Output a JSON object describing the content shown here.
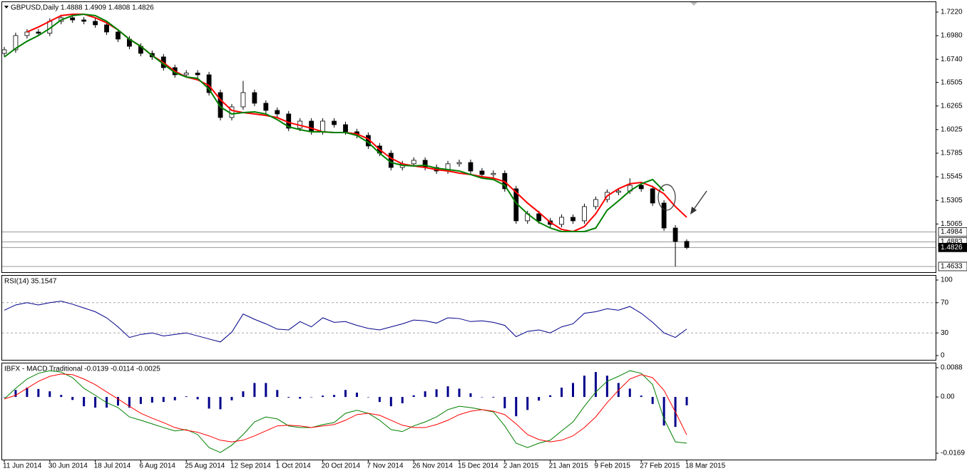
{
  "chart_data": [
    {
      "type": "candlestick",
      "title": "GBPUSD,Daily  1.4888 1.4909 1.4808 1.4826",
      "categories": [
        "11 Jun 2014",
        null,
        null,
        null,
        "30 Jun 2014",
        null,
        null,
        null,
        "18 Jul 2014",
        null,
        null,
        null,
        "6 Aug 2014",
        null,
        null,
        null,
        "25 Aug 2014",
        null,
        null,
        null,
        "12 Sep 2014",
        null,
        null,
        null,
        "1 Oct 2014",
        null,
        null,
        null,
        "20 Oct 2014",
        null,
        null,
        null,
        "7 Nov 2014",
        null,
        null,
        null,
        "26 Nov 2014",
        null,
        null,
        null,
        "15 Dec 2014",
        null,
        null,
        null,
        "2 Jan 2015",
        null,
        null,
        null,
        "21 Jan 2015",
        null,
        null,
        null,
        "9 Feb 2015",
        null,
        null,
        null,
        "27 Feb 2015",
        null,
        null,
        null,
        "18 Mar 2015"
      ],
      "open": [
        1.68,
        1.6836,
        1.6981,
        1.7017,
        1.7005,
        1.7126,
        1.7162,
        1.714,
        1.7126,
        1.709,
        1.7017,
        1.6945,
        1.6872,
        1.68,
        1.6764,
        1.6655,
        1.6582,
        1.66,
        1.6582,
        1.6401,
        1.6148,
        1.6256,
        1.6401,
        1.6293,
        1.622,
        1.6184,
        1.6039,
        1.6111,
        1.6003,
        1.6111,
        1.6075,
        1.6003,
        1.5966,
        1.5858,
        1.5785,
        1.564,
        1.5677,
        1.5713,
        1.564,
        1.5604,
        1.5677,
        1.569,
        1.5604,
        1.5568,
        1.558,
        1.5423,
        1.5097,
        1.5169,
        1.5097,
        1.5061,
        1.5133,
        1.5097,
        1.5242,
        1.5314,
        1.5387,
        1.54,
        1.5459,
        1.5423,
        1.5278,
        1.5024,
        1.4888
      ],
      "high": [
        1.6866,
        1.7011,
        1.7047,
        1.7047,
        1.7156,
        1.7192,
        1.7192,
        1.717,
        1.7156,
        1.712,
        1.7047,
        1.6975,
        1.6902,
        1.683,
        1.6794,
        1.6685,
        1.663,
        1.663,
        1.6612,
        1.6431,
        1.6286,
        1.652,
        1.6431,
        1.6323,
        1.625,
        1.6214,
        1.6141,
        1.6141,
        1.6141,
        1.6141,
        1.6105,
        1.6033,
        1.5996,
        1.5888,
        1.5815,
        1.5707,
        1.5743,
        1.5743,
        1.567,
        1.5707,
        1.572,
        1.572,
        1.5634,
        1.561,
        1.561,
        1.5453,
        1.5199,
        1.5199,
        1.5127,
        1.5163,
        1.5163,
        1.5272,
        1.5344,
        1.5417,
        1.543,
        1.553,
        1.5489,
        1.5453,
        1.5308,
        1.5054,
        1.4909
      ],
      "low": [
        1.677,
        1.6806,
        1.6951,
        1.6975,
        1.6975,
        1.7096,
        1.711,
        1.7096,
        1.706,
        1.6987,
        1.6915,
        1.6842,
        1.677,
        1.6734,
        1.6625,
        1.6552,
        1.6552,
        1.6552,
        1.6371,
        1.6118,
        1.6118,
        1.6226,
        1.6263,
        1.619,
        1.6154,
        1.6009,
        1.6009,
        1.5973,
        1.5973,
        1.6045,
        1.5973,
        1.5936,
        1.5828,
        1.5755,
        1.561,
        1.561,
        1.5647,
        1.561,
        1.5574,
        1.5574,
        1.5647,
        1.5574,
        1.5538,
        1.5538,
        1.5393,
        1.5067,
        1.5067,
        1.5067,
        1.5031,
        1.5031,
        1.5067,
        1.5067,
        1.5212,
        1.5284,
        1.5357,
        1.537,
        1.5393,
        1.5248,
        1.4994,
        1.4633,
        1.4808
      ],
      "close": [
        1.6836,
        1.6981,
        1.7017,
        1.7005,
        1.7126,
        1.7162,
        1.714,
        1.7126,
        1.709,
        1.7017,
        1.6945,
        1.6872,
        1.68,
        1.6764,
        1.6655,
        1.6582,
        1.66,
        1.6582,
        1.6401,
        1.6148,
        1.6256,
        1.6401,
        1.6293,
        1.622,
        1.6184,
        1.6039,
        1.6111,
        1.6003,
        1.6111,
        1.6075,
        1.6003,
        1.5966,
        1.5858,
        1.5785,
        1.564,
        1.5677,
        1.5713,
        1.564,
        1.5604,
        1.5677,
        1.569,
        1.5604,
        1.5568,
        1.558,
        1.5423,
        1.5097,
        1.5169,
        1.5097,
        1.5061,
        1.5133,
        1.5097,
        1.5242,
        1.5314,
        1.5387,
        1.54,
        1.5459,
        1.5423,
        1.5278,
        1.5024,
        1.4888,
        1.4826
      ],
      "up_color": "#ffffff",
      "down_color": "#000000",
      "series": [
        {
          "color": "#ff0000",
          "values": [
            null,
            null,
            1.7017,
            1.7068,
            1.7126,
            1.7184,
            1.7198,
            1.7198,
            1.7162,
            1.7111,
            1.7039,
            1.6944,
            1.6872,
            1.6778,
            1.6705,
            1.6618,
            1.656,
            1.6531,
            1.6473,
            1.6329,
            1.622,
            1.6198,
            1.6184,
            1.6169,
            1.6147,
            1.6097,
            1.6068,
            1.6039,
            1.6002,
            1.5995,
            1.5995,
            1.5981,
            1.593,
            1.5821,
            1.5734,
            1.5676,
            1.5655,
            1.564,
            1.5618,
            1.5604,
            1.5582,
            1.5568,
            1.5546,
            1.5531,
            1.5495,
            1.5387,
            1.5278,
            1.5184,
            1.5082,
            1.501,
            1.4988,
            1.5039,
            1.5169,
            1.535,
            1.5423,
            1.5474,
            1.5488,
            1.5445,
            1.5372,
            1.5242,
            1.5133
          ]
        },
        {
          "color": "#008000",
          "values": [
            1.6763,
            1.685,
            1.6923,
            1.6981,
            1.7053,
            1.714,
            1.7184,
            1.7198,
            1.7184,
            1.7126,
            1.7039,
            1.6944,
            1.6872,
            1.6778,
            1.6691,
            1.6604,
            1.656,
            1.6546,
            1.6437,
            1.6256,
            1.6184,
            1.6198,
            1.6205,
            1.6184,
            1.6126,
            1.6053,
            1.6024,
            1.6002,
            1.6002,
            1.5995,
            1.5995,
            1.5966,
            1.5894,
            1.5785,
            1.5691,
            1.5662,
            1.5655,
            1.5662,
            1.5633,
            1.5618,
            1.5604,
            1.5568,
            1.5531,
            1.5517,
            1.5459,
            1.5278,
            1.5169,
            1.5082,
            1.5024,
            1.4988,
            1.4988,
            1.4988,
            1.5024,
            1.5205,
            1.53,
            1.5401,
            1.5474,
            1.5517,
            1.5401,
            null,
            null
          ]
        }
      ],
      "ylim": [
        1.4582,
        1.7321
      ],
      "yticks": [
        {
          "value": 1.722,
          "label": "1.7220"
        },
        {
          "value": 1.698,
          "label": "1.6980"
        },
        {
          "value": 1.674,
          "label": "1.6740"
        },
        {
          "value": 1.6505,
          "label": "1.6505"
        },
        {
          "value": 1.6265,
          "label": "1.6265"
        },
        {
          "value": 1.6025,
          "label": "1.6025"
        },
        {
          "value": 1.5785,
          "label": "1.5785"
        },
        {
          "value": 1.5545,
          "label": "1.5545"
        },
        {
          "value": 1.5305,
          "label": "1.5305"
        },
        {
          "value": 1.5065,
          "label": "1.5065"
        }
      ],
      "levels": [
        {
          "value": 1.4984,
          "label": "1.4984"
        },
        {
          "value": 1.4883,
          "label": "1.4883"
        },
        {
          "value": 1.4826,
          "label": "1.4826"
        },
        {
          "value": 1.4633,
          "label": "1.4633"
        }
      ]
    },
    {
      "type": "line",
      "title": "RSI(14) 35.1547",
      "series": [
        {
          "color": "#00008b",
          "values": [
            60,
            67,
            70,
            67,
            70,
            72,
            68,
            63,
            58,
            50,
            38,
            24,
            28,
            30,
            26,
            28,
            30,
            26,
            22,
            18,
            31,
            55,
            48,
            42,
            35,
            34,
            45,
            38,
            50,
            44,
            45,
            40,
            36,
            34,
            38,
            42,
            47,
            46,
            43,
            50,
            49,
            45,
            46,
            44,
            40,
            25,
            32,
            34,
            30,
            38,
            42,
            56,
            58,
            62,
            60,
            65,
            56,
            44,
            30,
            24,
            35.15
          ]
        }
      ],
      "ylim": [
        0,
        100
      ],
      "yticks": [
        100,
        70,
        30,
        0
      ],
      "grid": true
    },
    {
      "type": "bar",
      "title": "IBFX - MACD Traditional -0.0139 -0.0114 -0.0025",
      "color": "#00008b",
      "values": [
        0,
        0.0021,
        0.0028,
        0.0024,
        0.0017,
        0.0006,
        -0.0009,
        -0.0028,
        -0.0032,
        -0.0032,
        -0.0026,
        -0.0032,
        -0.0021,
        -0.0017,
        -0.0015,
        -0.001,
        0.0002,
        -0.0007,
        -0.0035,
        -0.0037,
        -0.001,
        0.0017,
        0.0042,
        0.0042,
        0.0021,
        -0.0002,
        -0.0005,
        0,
        0.0004,
        0.0006,
        0.0021,
        0.0013,
        0,
        -0.0015,
        -0.0028,
        -0.0019,
        0.0005,
        0.0017,
        0.0023,
        0.0032,
        0.0025,
        0.0011,
        0,
        -0.0002,
        -0.0034,
        -0.0058,
        -0.0039,
        -0.0011,
        0.0005,
        0.0028,
        0.0042,
        0.0064,
        0.0075,
        0.0064,
        0.0042,
        0.0025,
        0.0004,
        -0.0021,
        -0.0086,
        -0.009,
        -0.0025
      ],
      "series": [
        {
          "color": "#008000",
          "values": [
            -0.0006,
            0.0026,
            0.0054,
            0.0071,
            0.0079,
            0.0075,
            0.0058,
            0.0026,
            0.0005,
            -0.0017,
            -0.0032,
            -0.006,
            -0.007,
            -0.0081,
            -0.0092,
            -0.0102,
            -0.0098,
            -0.0113,
            -0.0152,
            -0.0167,
            -0.0145,
            -0.0113,
            -0.0075,
            -0.006,
            -0.0066,
            -0.0087,
            -0.0092,
            -0.0092,
            -0.0083,
            -0.0077,
            -0.0049,
            -0.004,
            -0.0049,
            -0.007,
            -0.0098,
            -0.0104,
            -0.0087,
            -0.0075,
            -0.006,
            -0.0038,
            -0.0028,
            -0.0032,
            -0.0038,
            -0.0045,
            -0.0087,
            -0.0139,
            -0.0152,
            -0.0139,
            -0.013,
            -0.0102,
            -0.0075,
            -0.0028,
            0.0015,
            0.0047,
            0.0062,
            0.0079,
            0.0071,
            0.0037,
            -0.0066,
            -0.0135,
            -0.0139
          ]
        },
        {
          "color": "#ff0000",
          "values": [
            -0.0006,
            0.0005,
            0.0026,
            0.0047,
            0.0062,
            0.0069,
            0.0067,
            0.0054,
            0.0037,
            0.0015,
            -0.0006,
            -0.0028,
            -0.0049,
            -0.0064,
            -0.0077,
            -0.0092,
            -0.01,
            -0.0106,
            -0.0117,
            -0.013,
            -0.0135,
            -0.013,
            -0.0117,
            -0.0102,
            -0.0087,
            -0.0085,
            -0.0087,
            -0.0092,
            -0.0087,
            -0.0083,
            -0.007,
            -0.0053,
            -0.0049,
            -0.0055,
            -0.007,
            -0.0085,
            -0.0092,
            -0.0092,
            -0.0083,
            -0.007,
            -0.0053,
            -0.0043,
            -0.0038,
            -0.0043,
            -0.0053,
            -0.0081,
            -0.0113,
            -0.0128,
            -0.0135,
            -0.013,
            -0.0117,
            -0.0092,
            -0.006,
            -0.0017,
            0.002,
            0.0054,
            0.0067,
            0.0058,
            0.002,
            -0.0045,
            -0.0114
          ]
        }
      ],
      "ylim": [
        -0.0169,
        0.0088
      ],
      "yticks": [
        0.0088,
        {
          "value": 0,
          "label": "0.00"
        },
        -0.0169
      ]
    }
  ]
}
